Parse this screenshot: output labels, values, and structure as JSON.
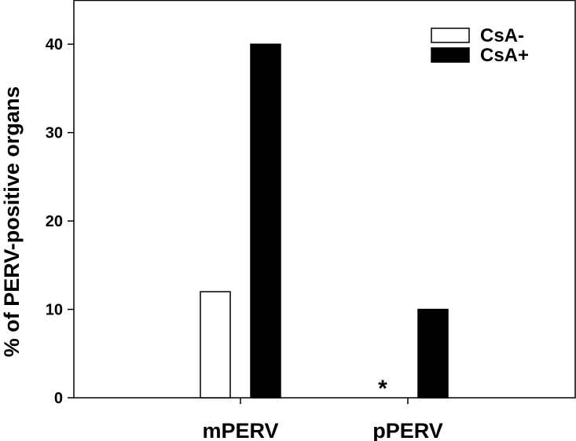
{
  "chart_data": {
    "type": "bar",
    "categories": [
      "mPERV",
      "pPERV"
    ],
    "series": [
      {
        "name": "CsA-",
        "values": [
          12,
          0
        ],
        "color": "#ffffff"
      },
      {
        "name": "CsA+",
        "values": [
          40,
          10
        ],
        "color": "#000000"
      }
    ],
    "ylabel": "% of PERV-positive organs",
    "xlabel": "",
    "ylim": [
      0,
      45
    ],
    "yticks": [
      0,
      10,
      20,
      30,
      40
    ],
    "grid": false,
    "legend": "top-right",
    "annotations": [
      {
        "text": "*",
        "category": "pPERV",
        "series": "CsA-"
      }
    ]
  }
}
